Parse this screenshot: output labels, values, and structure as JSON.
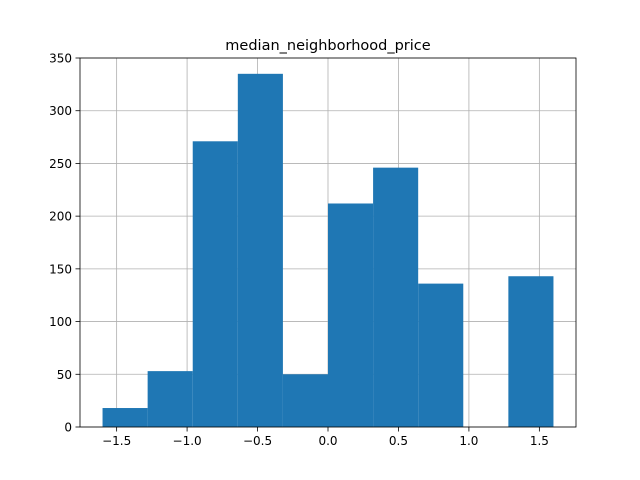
{
  "chart_data": {
    "type": "bar",
    "title": "median_neighborhood_price",
    "xlabel": "",
    "ylabel": "",
    "xlim": [
      -1.76,
      1.76
    ],
    "ylim": [
      0,
      350
    ],
    "grid": true,
    "bar_color": "#1f77b4",
    "grid_color": "#b0b0b0",
    "bins": [
      {
        "x0": -1.6,
        "x1": -1.28,
        "value": 18
      },
      {
        "x0": -1.28,
        "x1": -0.96,
        "value": 53
      },
      {
        "x0": -0.96,
        "x1": -0.64,
        "value": 271
      },
      {
        "x0": -0.64,
        "x1": -0.32,
        "value": 335
      },
      {
        "x0": -0.32,
        "x1": 0.0,
        "value": 50
      },
      {
        "x0": 0.0,
        "x1": 0.32,
        "value": 212
      },
      {
        "x0": 0.32,
        "x1": 0.64,
        "value": 246
      },
      {
        "x0": 0.64,
        "x1": 0.96,
        "value": 136
      },
      {
        "x0": 0.96,
        "x1": 1.28,
        "value": 0
      },
      {
        "x0": 1.28,
        "x1": 1.6,
        "value": 143
      }
    ],
    "xticks": [
      {
        "value": -1.5,
        "label": "−1.5"
      },
      {
        "value": -1.0,
        "label": "−1.0"
      },
      {
        "value": -0.5,
        "label": "−0.5"
      },
      {
        "value": 0.0,
        "label": "0.0"
      },
      {
        "value": 0.5,
        "label": "0.5"
      },
      {
        "value": 1.0,
        "label": "1.0"
      },
      {
        "value": 1.5,
        "label": "1.5"
      }
    ],
    "yticks": [
      {
        "value": 0,
        "label": "0"
      },
      {
        "value": 50,
        "label": "50"
      },
      {
        "value": 100,
        "label": "100"
      },
      {
        "value": 150,
        "label": "150"
      },
      {
        "value": 200,
        "label": "200"
      },
      {
        "value": 250,
        "label": "250"
      },
      {
        "value": 300,
        "label": "300"
      },
      {
        "value": 350,
        "label": "350"
      }
    ]
  }
}
